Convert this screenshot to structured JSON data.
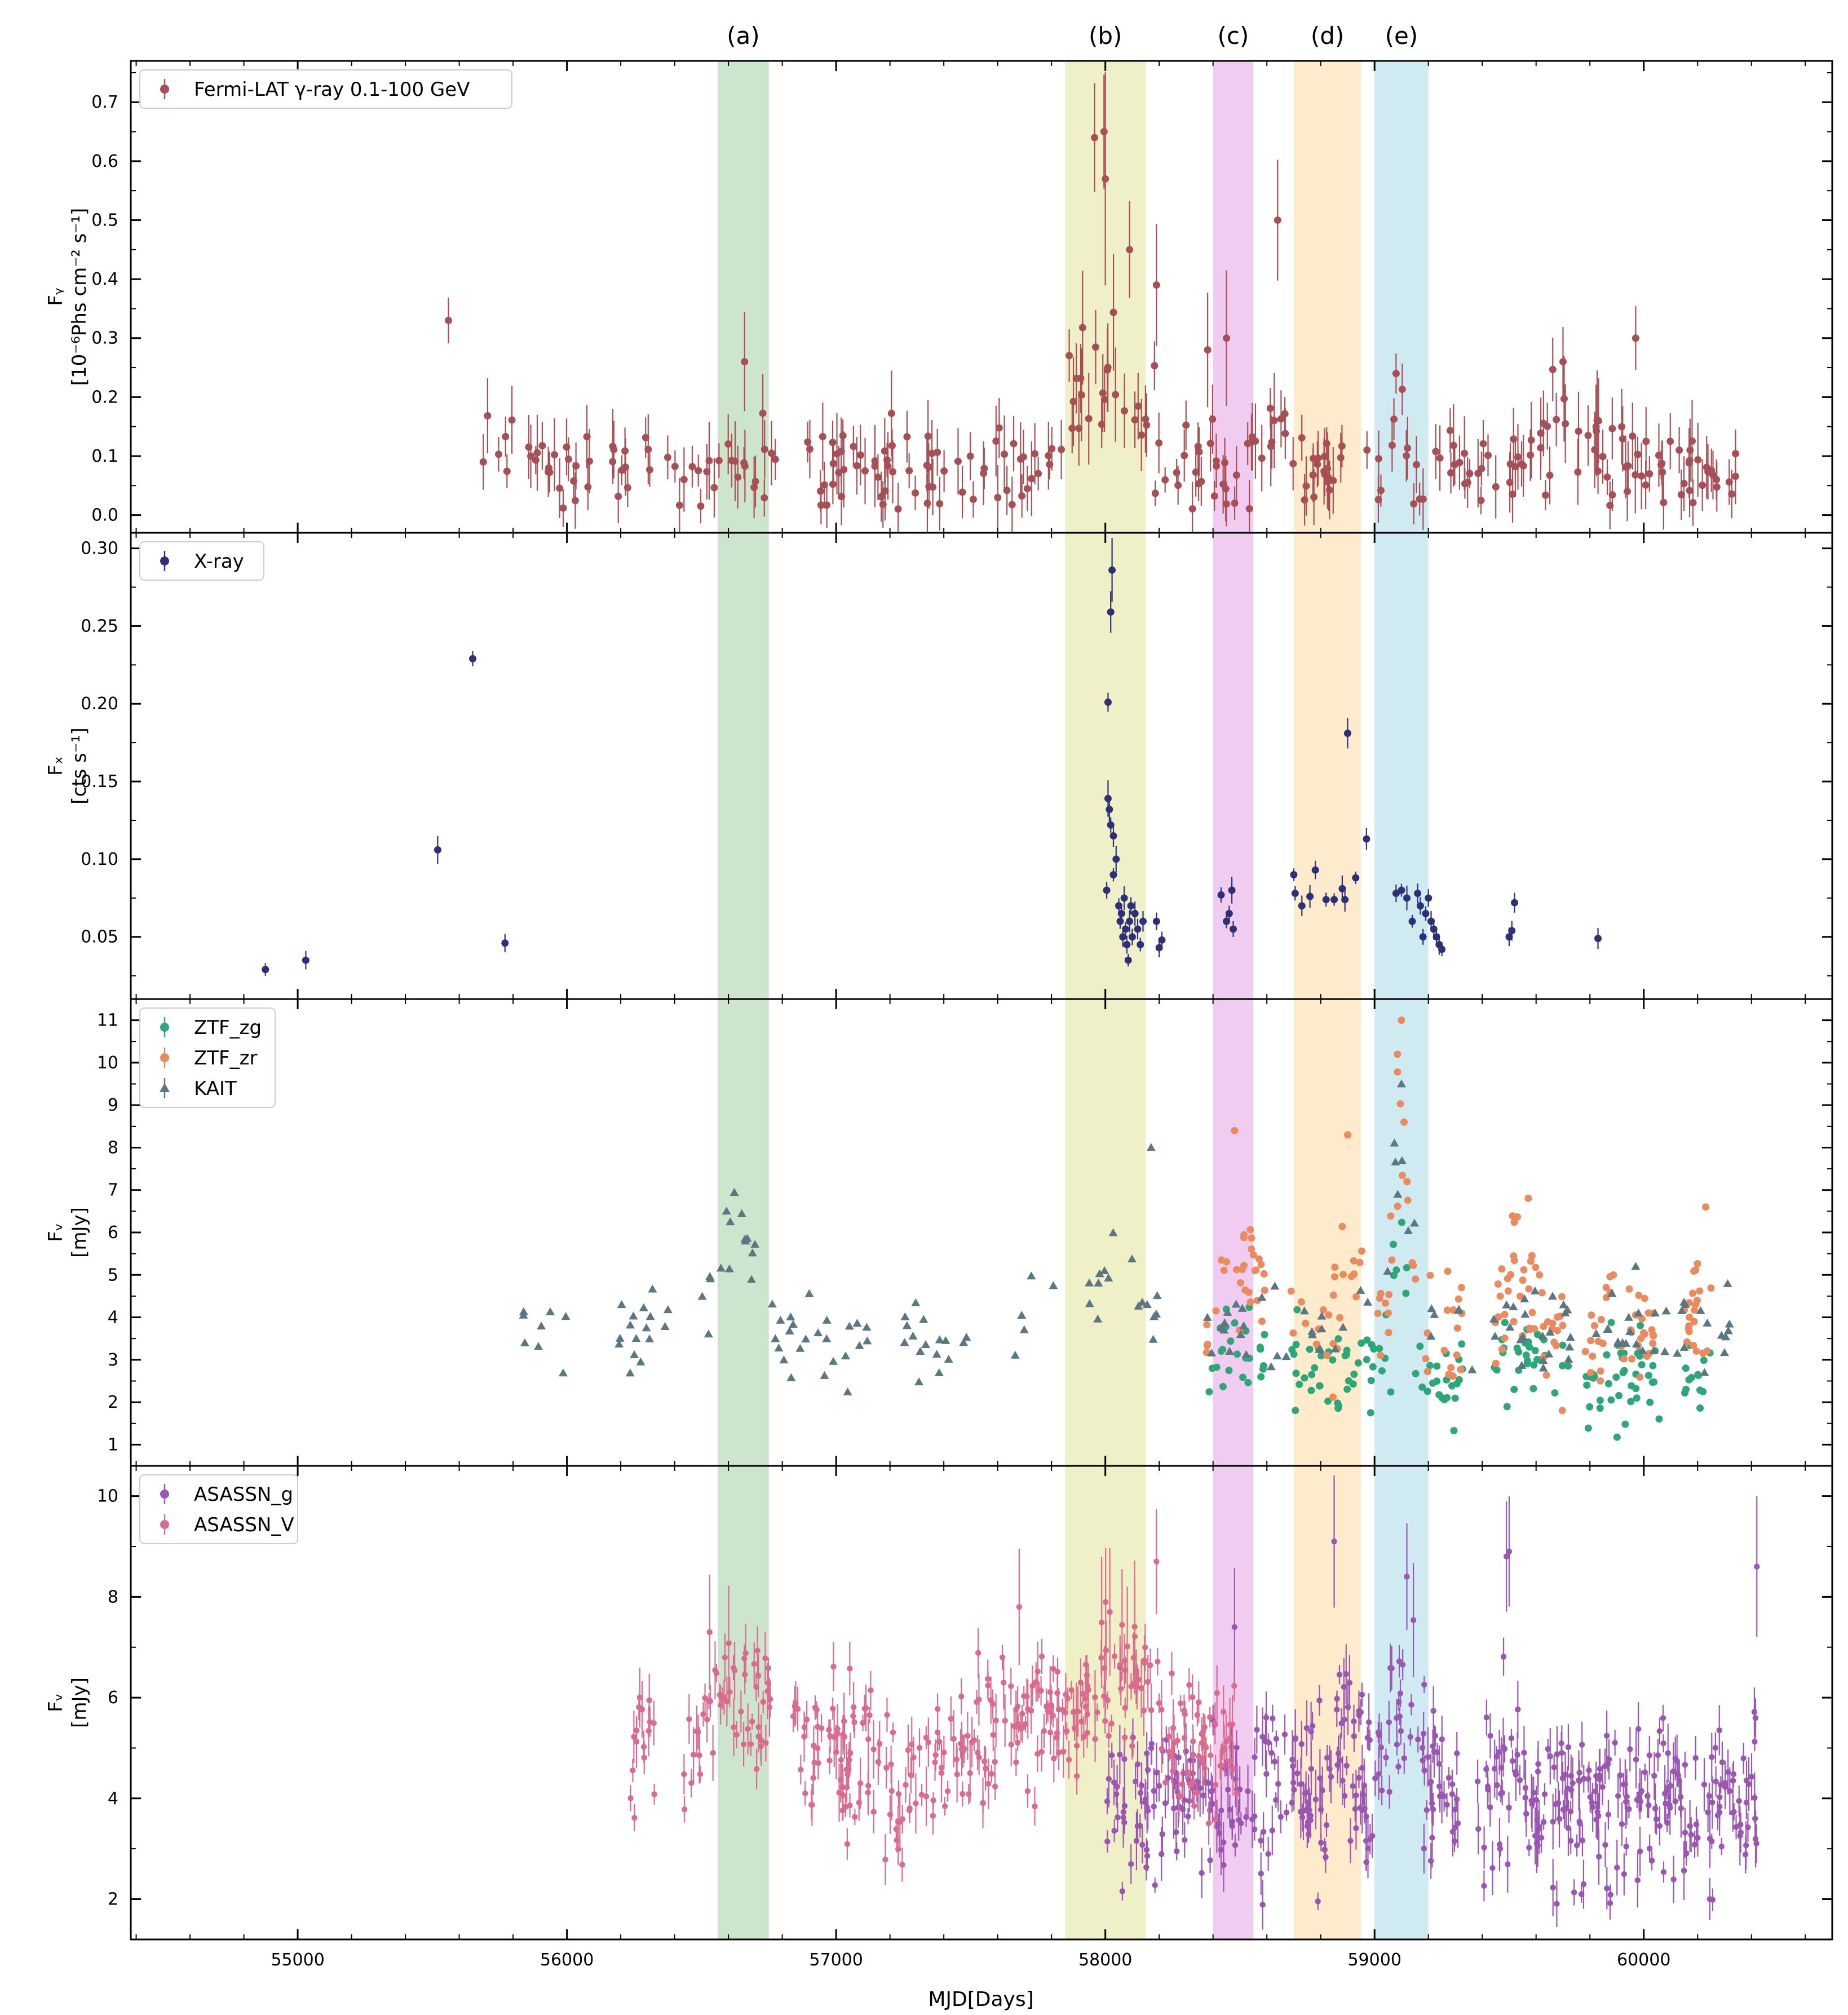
{
  "chart_data": {
    "type": "scatter",
    "xlabel": "MJD[Days]",
    "xlim": [
      54380,
      60700
    ],
    "xticks": [
      55000,
      56000,
      57000,
      58000,
      59000,
      60000
    ],
    "bands": [
      {
        "label": "(a)",
        "x0": 56560,
        "x1": 56750,
        "color": "#cce5cc"
      },
      {
        "label": "(b)",
        "x0": 57850,
        "x1": 58150,
        "color": "#f0f0c8"
      },
      {
        "label": "(c)",
        "x0": 58400,
        "x1": 58550,
        "color": "#f0ccf0"
      },
      {
        "label": "(d)",
        "x0": 58700,
        "x1": 58950,
        "color": "#fdebcc"
      },
      {
        "label": "(e)",
        "x0": 59000,
        "x1": 59200,
        "color": "#d0eaf2"
      }
    ],
    "panels": [
      {
        "id": "gamma",
        "ylabel_lines": [
          "Fᵧ",
          "[10⁻⁶Phs cm⁻² s⁻¹]"
        ],
        "ylim": [
          -0.03,
          0.77
        ],
        "yticks": [
          0.0,
          0.1,
          0.2,
          0.3,
          0.4,
          0.5,
          0.6,
          0.7
        ],
        "series": [
          {
            "name": "Fermi-LAT γ-ray 0.1-100 GeV",
            "marker": "circle",
            "color": "#a84f55",
            "gen": {
              "x0": 55680,
              "x1": 60360,
              "n": 330,
              "baseline": 0.08,
              "noise": 0.035,
              "bumps": [
                [
                  55570,
                  220,
                  0.09
                ],
                [
                  57950,
                  120,
                  0.2
                ],
                [
                  58150,
                  90,
                  0.08
                ],
                [
                  58650,
                  60,
                  0.09
                ],
                [
                  59700,
                  150,
                  0.05
                ]
              ],
              "gaps": [
                [
                  56780,
                  56880
                ],
                [
                  58880,
                  58960
                ],
                [
                  59030,
                  59060
                ]
              ],
              "ymin": 0.01,
              "err": 0.3
            },
            "highlights": [
              [
                55560,
                0.33
              ],
              [
                57960,
                0.64
              ],
              [
                57995,
                0.65
              ],
              [
                58000,
                0.57
              ],
              [
                58090,
                0.45
              ],
              [
                58640,
                0.5
              ],
              [
                58190,
                0.39
              ],
              [
                56660,
                0.26
              ],
              [
                59080,
                0.24
              ],
              [
                59970,
                0.3
              ],
              [
                58450,
                0.3
              ],
              [
                58380,
                0.28
              ],
              [
                59700,
                0.26
              ]
            ]
          }
        ]
      },
      {
        "id": "xray",
        "ylabel_lines": [
          "Fₓ",
          "[cts s⁻¹]"
        ],
        "ylim": [
          0.01,
          0.31
        ],
        "yticks": [
          0.05,
          0.1,
          0.15,
          0.2,
          0.25,
          0.3
        ],
        "series": [
          {
            "name": "X-ray",
            "marker": "circle",
            "color": "#2d2f78",
            "points": [
              [
                54880,
                0.029
              ],
              [
                55030,
                0.035
              ],
              [
                55520,
                0.106
              ],
              [
                55650,
                0.229
              ],
              [
                55770,
                0.046
              ],
              [
                58010,
                0.201
              ],
              [
                58020,
                0.259
              ],
              [
                58025,
                0.286
              ],
              [
                58010,
                0.139
              ],
              [
                58015,
                0.132
              ],
              [
                58020,
                0.122
              ],
              [
                58030,
                0.115
              ],
              [
                58005,
                0.08
              ],
              [
                58030,
                0.09
              ],
              [
                58040,
                0.1
              ],
              [
                58050,
                0.07
              ],
              [
                58055,
                0.06
              ],
              [
                58060,
                0.065
              ],
              [
                58065,
                0.05
              ],
              [
                58070,
                0.075
              ],
              [
                58075,
                0.055
              ],
              [
                58080,
                0.045
              ],
              [
                58085,
                0.035
              ],
              [
                58090,
                0.06
              ],
              [
                58095,
                0.07
              ],
              [
                58100,
                0.05
              ],
              [
                58110,
                0.065
              ],
              [
                58120,
                0.055
              ],
              [
                58130,
                0.045
              ],
              [
                58140,
                0.06
              ],
              [
                58190,
                0.06
              ],
              [
                58210,
                0.048
              ],
              [
                58200,
                0.043
              ],
              [
                58430,
                0.077
              ],
              [
                58450,
                0.06
              ],
              [
                58460,
                0.065
              ],
              [
                58470,
                0.08
              ],
              [
                58475,
                0.055
              ],
              [
                58700,
                0.09
              ],
              [
                58705,
                0.078
              ],
              [
                58730,
                0.07
              ],
              [
                58760,
                0.076
              ],
              [
                58780,
                0.093
              ],
              [
                58820,
                0.074
              ],
              [
                58850,
                0.074
              ],
              [
                58880,
                0.081
              ],
              [
                58890,
                0.074
              ],
              [
                58900,
                0.181
              ],
              [
                58930,
                0.088
              ],
              [
                58970,
                0.113
              ],
              [
                59080,
                0.078
              ],
              [
                59100,
                0.08
              ],
              [
                59120,
                0.075
              ],
              [
                59140,
                0.06
              ],
              [
                59160,
                0.078
              ],
              [
                59170,
                0.07
              ],
              [
                59180,
                0.05
              ],
              [
                59190,
                0.065
              ],
              [
                59200,
                0.075
              ],
              [
                59210,
                0.06
              ],
              [
                59220,
                0.055
              ],
              [
                59230,
                0.05
              ],
              [
                59240,
                0.045
              ],
              [
                59250,
                0.042
              ],
              [
                59500,
                0.05
              ],
              [
                59510,
                0.054
              ],
              [
                59520,
                0.072
              ],
              [
                59830,
                0.049
              ]
            ]
          }
        ]
      },
      {
        "id": "optical",
        "ylabel_lines": [
          "Fᵥ",
          "[mJy]"
        ],
        "ylim": [
          0.5,
          11.5
        ],
        "yticks": [
          1,
          2,
          3,
          4,
          5,
          6,
          7,
          8,
          9,
          10,
          11
        ],
        "series": [
          {
            "name": "ZTF_zg",
            "marker": "circle",
            "color": "#2ca77a",
            "gen": {
              "x0": 58370,
              "x1": 60250,
              "n": 240,
              "baseline": 2.6,
              "noise": 0.5,
              "bumps": [
                [
                  59100,
                  40,
                  3.0
                ],
                [
                  58500,
                  80,
                  1.0
                ],
                [
                  59550,
                  60,
                  1.0
                ]
              ],
              "gaps": [
                [
                  58600,
                  58690
                ],
                [
                  59330,
                  59440
                ],
                [
                  59720,
                  59780
                ],
                [
                  60060,
                  60150
                ]
              ],
              "ymin": 1.0
            }
          },
          {
            "name": "ZTF_zr",
            "marker": "circle",
            "color": "#ec8a5e",
            "gen": {
              "x0": 58370,
              "x1": 60250,
              "n": 240,
              "baseline": 3.8,
              "noise": 0.7,
              "bumps": [
                [
                  59100,
                  40,
                  4.5
                ],
                [
                  58500,
                  80,
                  2.0
                ],
                [
                  58900,
                  50,
                  1.5
                ],
                [
                  59550,
                  60,
                  1.0
                ]
              ],
              "gaps": [
                [
                  58600,
                  58690
                ],
                [
                  59330,
                  59440
                ],
                [
                  59720,
                  59780
                ],
                [
                  60060,
                  60150
                ]
              ],
              "ymin": 1.3
            },
            "highlights": [
              [
                58480,
                8.4
              ],
              [
                58900,
                8.3
              ],
              [
                59100,
                11.0
              ],
              [
                59085,
                10.2
              ],
              [
                60230,
                6.6
              ]
            ]
          },
          {
            "name": "KAIT",
            "marker": "triangle",
            "color": "#5c7682",
            "gen": {
              "x0": 55830,
              "x1": 60330,
              "n": 240,
              "baseline": 3.6,
              "noise": 0.5,
              "bumps": [
                [
                  56640,
                  90,
                  2.3
                ],
                [
                  57760,
                  120,
                  1.0
                ],
                [
                  58050,
                  120,
                  2.0
                ],
                [
                  59100,
                  60,
                  4.0
                ]
              ],
              "gaps": [
                [
                  56000,
                  56180
                ],
                [
                  56380,
                  56500
                ],
                [
                  57130,
                  57250
                ],
                [
                  57500,
                  57650
                ],
                [
                  58200,
                  58360
                ]
              ],
              "ymin": 2.2
            },
            "highlights": [
              [
                58170,
                8.0
              ],
              [
                59970,
                5.2
              ],
              [
                59100,
                9.5
              ]
            ]
          }
        ]
      },
      {
        "id": "asassn",
        "ylabel_lines": [
          "Fᵥ",
          "[mJy]"
        ],
        "ylim": [
          1.2,
          10.6
        ],
        "yticks": [
          2,
          4,
          6,
          8,
          10
        ],
        "series": [
          {
            "name": "ASASSN_g",
            "marker": "circle",
            "color": "#9b55b3",
            "gen": {
              "x0": 58000,
              "x1": 60420,
              "n": 520,
              "baseline": 4.0,
              "noise": 0.8,
              "bumps": [
                [
                  59100,
                  100,
                  1.8
                ],
                [
                  58880,
                  40,
                  1.5
                ]
              ],
              "gaps": [
                [
                  59310,
                  59380
                ]
              ],
              "ymin": 1.8
            },
            "highlights": [
              [
                58850,
                9.1
              ],
              [
                59120,
                8.4
              ],
              [
                59490,
                8.8
              ],
              [
                59500,
                8.9
              ],
              [
                60420,
                8.6
              ],
              [
                58480,
                7.4
              ]
            ]
          },
          {
            "name": "ASASSN_V",
            "marker": "circle",
            "color": "#db6b8e",
            "gen": {
              "x0": 56220,
              "x1": 58500,
              "n": 420,
              "baseline": 4.9,
              "noise": 0.6,
              "bumps": [
                [
                  56630,
                  120,
                  1.4
                ],
                [
                  57720,
                  140,
                  0.6
                ],
                [
                  58050,
                  150,
                  1.6
                ],
                [
                  57250,
                  60,
                  -1.1
                ]
              ],
              "gaps": [
                [
                  56360,
                  56430
                ],
                [
                  56760,
                  56840
                ]
              ],
              "ymin": 2.4
            },
            "highlights": [
              [
                57680,
                7.8
              ],
              [
                58190,
                8.7
              ],
              [
                56530,
                7.3
              ]
            ]
          }
        ]
      }
    ]
  }
}
